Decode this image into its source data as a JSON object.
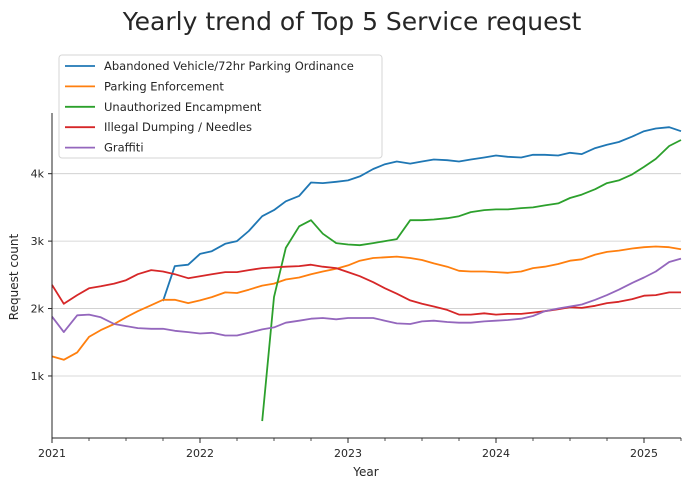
{
  "chart_data": {
    "type": "line",
    "title": "Yearly trend of Top 5 Service request",
    "xlabel": "Year",
    "ylabel": "Request count",
    "x_tick_labels": [
      "2021",
      "2022",
      "2023",
      "2024",
      "2025"
    ],
    "y_tick_labels": [
      "1k",
      "2k",
      "3k",
      "4k"
    ],
    "y_ticks": [
      1000,
      2000,
      3000,
      4000
    ],
    "x_ticks": [
      2021,
      2022,
      2023,
      2024,
      2025
    ],
    "xlim": [
      2021.0,
      2025.25
    ],
    "ylim": [
      80,
      4900
    ],
    "grid": "horizontal",
    "legend_position": "top-left",
    "colors": [
      "#1f77b4",
      "#ff7f0e",
      "#2ca02c",
      "#d62728",
      "#9467bd"
    ],
    "series": [
      {
        "name": "Abandoned Vehicle/72hr Parking Ordinance",
        "points": [
          [
            2021.75,
            2110
          ],
          [
            2021.83,
            2630
          ],
          [
            2021.92,
            2650
          ],
          [
            2022.0,
            2810
          ],
          [
            2022.08,
            2850
          ],
          [
            2022.17,
            2960
          ],
          [
            2022.25,
            3000
          ],
          [
            2022.33,
            3150
          ],
          [
            2022.42,
            3370
          ],
          [
            2022.5,
            3460
          ],
          [
            2022.58,
            3590
          ],
          [
            2022.67,
            3670
          ],
          [
            2022.75,
            3870
          ],
          [
            2022.83,
            3860
          ],
          [
            2022.92,
            3880
          ],
          [
            2023.0,
            3900
          ],
          [
            2023.08,
            3960
          ],
          [
            2023.17,
            4070
          ],
          [
            2023.25,
            4140
          ],
          [
            2023.33,
            4180
          ],
          [
            2023.42,
            4150
          ],
          [
            2023.5,
            4180
          ],
          [
            2023.58,
            4210
          ],
          [
            2023.67,
            4200
          ],
          [
            2023.75,
            4180
          ],
          [
            2023.83,
            4210
          ],
          [
            2023.92,
            4240
          ],
          [
            2024.0,
            4270
          ],
          [
            2024.08,
            4250
          ],
          [
            2024.17,
            4240
          ],
          [
            2024.25,
            4280
          ],
          [
            2024.33,
            4280
          ],
          [
            2024.42,
            4270
          ],
          [
            2024.5,
            4310
          ],
          [
            2024.58,
            4290
          ],
          [
            2024.67,
            4380
          ],
          [
            2024.75,
            4430
          ],
          [
            2024.83,
            4470
          ],
          [
            2024.92,
            4550
          ],
          [
            2025.0,
            4630
          ],
          [
            2025.08,
            4670
          ],
          [
            2025.17,
            4690
          ],
          [
            2025.25,
            4630
          ]
        ]
      },
      {
        "name": "Parking Enforcement",
        "points": [
          [
            2021.0,
            1290
          ],
          [
            2021.08,
            1240
          ],
          [
            2021.17,
            1350
          ],
          [
            2021.25,
            1580
          ],
          [
            2021.33,
            1680
          ],
          [
            2021.42,
            1770
          ],
          [
            2021.5,
            1870
          ],
          [
            2021.58,
            1960
          ],
          [
            2021.67,
            2050
          ],
          [
            2021.75,
            2130
          ],
          [
            2021.83,
            2130
          ],
          [
            2021.92,
            2080
          ],
          [
            2022.0,
            2120
          ],
          [
            2022.08,
            2170
          ],
          [
            2022.17,
            2240
          ],
          [
            2022.25,
            2230
          ],
          [
            2022.33,
            2280
          ],
          [
            2022.42,
            2340
          ],
          [
            2022.5,
            2370
          ],
          [
            2022.58,
            2430
          ],
          [
            2022.67,
            2460
          ],
          [
            2022.75,
            2510
          ],
          [
            2022.83,
            2550
          ],
          [
            2022.92,
            2590
          ],
          [
            2023.0,
            2640
          ],
          [
            2023.08,
            2710
          ],
          [
            2023.17,
            2750
          ],
          [
            2023.25,
            2760
          ],
          [
            2023.33,
            2770
          ],
          [
            2023.42,
            2750
          ],
          [
            2023.5,
            2720
          ],
          [
            2023.58,
            2670
          ],
          [
            2023.67,
            2620
          ],
          [
            2023.75,
            2560
          ],
          [
            2023.83,
            2550
          ],
          [
            2023.92,
            2550
          ],
          [
            2024.0,
            2540
          ],
          [
            2024.08,
            2530
          ],
          [
            2024.17,
            2550
          ],
          [
            2024.25,
            2600
          ],
          [
            2024.33,
            2620
          ],
          [
            2024.42,
            2660
          ],
          [
            2024.5,
            2710
          ],
          [
            2024.58,
            2730
          ],
          [
            2024.67,
            2800
          ],
          [
            2024.75,
            2840
          ],
          [
            2024.83,
            2860
          ],
          [
            2024.92,
            2890
          ],
          [
            2025.0,
            2910
          ],
          [
            2025.08,
            2920
          ],
          [
            2025.17,
            2910
          ],
          [
            2025.25,
            2880
          ]
        ]
      },
      {
        "name": "Unauthorized Encampment",
        "points": [
          [
            2022.42,
            330
          ],
          [
            2022.5,
            2170
          ],
          [
            2022.58,
            2900
          ],
          [
            2022.67,
            3220
          ],
          [
            2022.75,
            3310
          ],
          [
            2022.83,
            3110
          ],
          [
            2022.92,
            2970
          ],
          [
            2023.0,
            2950
          ],
          [
            2023.08,
            2940
          ],
          [
            2023.17,
            2970
          ],
          [
            2023.25,
            3000
          ],
          [
            2023.33,
            3030
          ],
          [
            2023.42,
            3310
          ],
          [
            2023.5,
            3310
          ],
          [
            2023.58,
            3320
          ],
          [
            2023.67,
            3340
          ],
          [
            2023.75,
            3370
          ],
          [
            2023.83,
            3430
          ],
          [
            2023.92,
            3460
          ],
          [
            2024.0,
            3470
          ],
          [
            2024.08,
            3470
          ],
          [
            2024.17,
            3490
          ],
          [
            2024.25,
            3500
          ],
          [
            2024.33,
            3530
          ],
          [
            2024.42,
            3560
          ],
          [
            2024.5,
            3640
          ],
          [
            2024.58,
            3690
          ],
          [
            2024.67,
            3770
          ],
          [
            2024.75,
            3860
          ],
          [
            2024.83,
            3900
          ],
          [
            2024.92,
            3990
          ],
          [
            2025.0,
            4100
          ],
          [
            2025.08,
            4220
          ],
          [
            2025.17,
            4410
          ],
          [
            2025.25,
            4500
          ]
        ]
      },
      {
        "name": "Illegal Dumping / Needles",
        "points": [
          [
            2021.0,
            2350
          ],
          [
            2021.08,
            2070
          ],
          [
            2021.17,
            2200
          ],
          [
            2021.25,
            2300
          ],
          [
            2021.33,
            2330
          ],
          [
            2021.42,
            2370
          ],
          [
            2021.5,
            2420
          ],
          [
            2021.58,
            2510
          ],
          [
            2021.67,
            2570
          ],
          [
            2021.75,
            2550
          ],
          [
            2021.83,
            2510
          ],
          [
            2021.92,
            2450
          ],
          [
            2022.0,
            2480
          ],
          [
            2022.08,
            2510
          ],
          [
            2022.17,
            2540
          ],
          [
            2022.25,
            2540
          ],
          [
            2022.33,
            2570
          ],
          [
            2022.42,
            2600
          ],
          [
            2022.5,
            2610
          ],
          [
            2022.58,
            2620
          ],
          [
            2022.67,
            2630
          ],
          [
            2022.75,
            2650
          ],
          [
            2022.83,
            2620
          ],
          [
            2022.92,
            2600
          ],
          [
            2023.0,
            2540
          ],
          [
            2023.08,
            2480
          ],
          [
            2023.17,
            2390
          ],
          [
            2023.25,
            2300
          ],
          [
            2023.33,
            2220
          ],
          [
            2023.42,
            2120
          ],
          [
            2023.5,
            2070
          ],
          [
            2023.58,
            2030
          ],
          [
            2023.67,
            1980
          ],
          [
            2023.75,
            1910
          ],
          [
            2023.83,
            1910
          ],
          [
            2023.92,
            1930
          ],
          [
            2024.0,
            1910
          ],
          [
            2024.08,
            1920
          ],
          [
            2024.17,
            1920
          ],
          [
            2024.25,
            1940
          ],
          [
            2024.33,
            1960
          ],
          [
            2024.42,
            1990
          ],
          [
            2024.5,
            2020
          ],
          [
            2024.58,
            2010
          ],
          [
            2024.67,
            2040
          ],
          [
            2024.75,
            2080
          ],
          [
            2024.83,
            2100
          ],
          [
            2024.92,
            2140
          ],
          [
            2025.0,
            2190
          ],
          [
            2025.08,
            2200
          ],
          [
            2025.17,
            2240
          ],
          [
            2025.25,
            2240
          ]
        ]
      },
      {
        "name": "Graffiti",
        "points": [
          [
            2021.0,
            1880
          ],
          [
            2021.08,
            1650
          ],
          [
            2021.17,
            1900
          ],
          [
            2021.25,
            1910
          ],
          [
            2021.33,
            1870
          ],
          [
            2021.42,
            1770
          ],
          [
            2021.5,
            1740
          ],
          [
            2021.58,
            1710
          ],
          [
            2021.67,
            1700
          ],
          [
            2021.75,
            1700
          ],
          [
            2021.83,
            1670
          ],
          [
            2021.92,
            1650
          ],
          [
            2022.0,
            1630
          ],
          [
            2022.08,
            1640
          ],
          [
            2022.17,
            1600
          ],
          [
            2022.25,
            1600
          ],
          [
            2022.33,
            1640
          ],
          [
            2022.42,
            1690
          ],
          [
            2022.5,
            1720
          ],
          [
            2022.58,
            1790
          ],
          [
            2022.67,
            1820
          ],
          [
            2022.75,
            1850
          ],
          [
            2022.83,
            1860
          ],
          [
            2022.92,
            1840
          ],
          [
            2023.0,
            1860
          ],
          [
            2023.08,
            1860
          ],
          [
            2023.17,
            1860
          ],
          [
            2023.25,
            1820
          ],
          [
            2023.33,
            1780
          ],
          [
            2023.42,
            1770
          ],
          [
            2023.5,
            1810
          ],
          [
            2023.58,
            1820
          ],
          [
            2023.67,
            1800
          ],
          [
            2023.75,
            1790
          ],
          [
            2023.83,
            1790
          ],
          [
            2023.92,
            1810
          ],
          [
            2024.0,
            1820
          ],
          [
            2024.08,
            1830
          ],
          [
            2024.17,
            1850
          ],
          [
            2024.25,
            1890
          ],
          [
            2024.33,
            1960
          ],
          [
            2024.42,
            2000
          ],
          [
            2024.5,
            2030
          ],
          [
            2024.58,
            2060
          ],
          [
            2024.67,
            2130
          ],
          [
            2024.75,
            2200
          ],
          [
            2024.83,
            2280
          ],
          [
            2024.92,
            2380
          ],
          [
            2025.0,
            2460
          ],
          [
            2025.08,
            2550
          ],
          [
            2025.17,
            2690
          ],
          [
            2025.25,
            2740
          ]
        ]
      }
    ]
  }
}
